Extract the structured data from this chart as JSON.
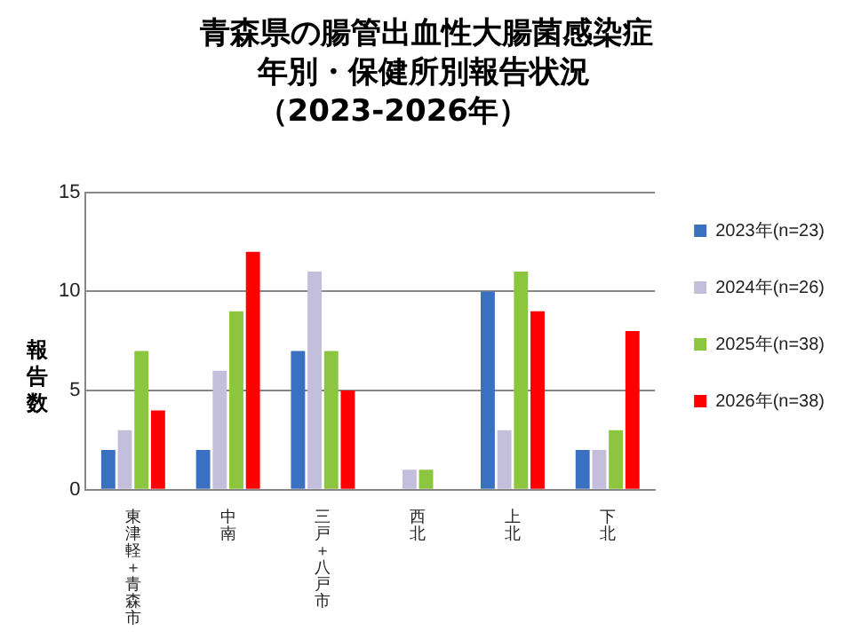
{
  "chart_data": {
    "type": "bar",
    "title": "青森県の腸管出血性大腸菌感染症",
    "subtitle": "年別・保健所別報告状況（2023-2026年）",
    "ylabel": "報告数",
    "categories": [
      "東津軽＋青森市",
      "中南",
      "三戸＋八戸市",
      "西北",
      "上北",
      "下北"
    ],
    "series": [
      {
        "name": "2023年(n=23)",
        "color": "#3a70c0",
        "values": [
          2,
          2,
          7,
          0,
          10,
          2
        ]
      },
      {
        "name": "2024年(n=26)",
        "color": "#c4bedd",
        "values": [
          3,
          6,
          11,
          1,
          3,
          2
        ]
      },
      {
        "name": "2025年(n=38)",
        "color": "#8cc63e",
        "values": [
          7,
          9,
          7,
          1,
          11,
          3
        ]
      },
      {
        "name": "2026年(n=38)",
        "color": "#ff0000",
        "values": [
          4,
          12,
          5,
          0,
          9,
          8
        ]
      }
    ],
    "ylim": [
      0,
      15
    ],
    "yticks": [
      0,
      5,
      10,
      15
    ],
    "grid": "y",
    "legend": "right"
  }
}
